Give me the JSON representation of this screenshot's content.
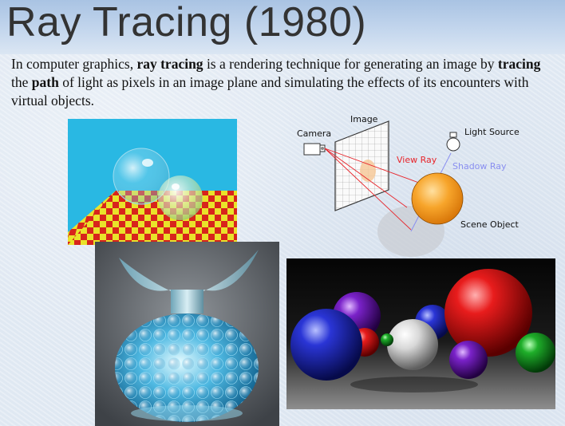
{
  "slide": {
    "title": "Ray Tracing (1980)",
    "intro": {
      "part1": "In computer graphics, ",
      "bold1": "ray tracing",
      "part2": " is a rendering technique for generating an image by ",
      "bold2": "tracing",
      "part3": " the ",
      "bold3": "path",
      "part4": " of light as pixels in an image plane and simulating the effects of its encounters with virtual objects."
    }
  },
  "diagram": {
    "image_label": "Image",
    "camera_label": "Camera",
    "light_label": "Light Source",
    "view_ray_label": "View Ray",
    "shadow_ray_label": "Shadow Ray",
    "object_label": "Scene Object",
    "colors": {
      "view_ray": "#e8242a",
      "shadow_ray": "#8a8ff0",
      "object": "#f39a1a"
    }
  }
}
